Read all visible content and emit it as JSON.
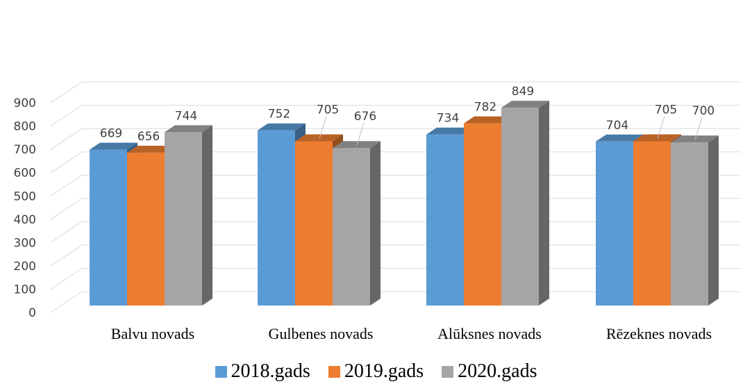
{
  "chart_data": {
    "type": "bar",
    "style": "3d-clustered-column",
    "categories": [
      "Balvu novads",
      "Gulbenes novads",
      "Alūksnes novads",
      "Rēzeknes novads"
    ],
    "series": [
      {
        "name": "2018.gads",
        "color": "#5B9BD5",
        "values": [
          669,
          752,
          734,
          704
        ]
      },
      {
        "name": "2019.gads",
        "color": "#ED7D31",
        "values": [
          656,
          705,
          782,
          705
        ]
      },
      {
        "name": "2020.gads",
        "color": "#A5A5A5",
        "values": [
          744,
          676,
          849,
          700
        ]
      }
    ],
    "ylim": [
      0,
      900
    ],
    "yticks": [
      "0",
      "100",
      "200",
      "300",
      "400",
      "500",
      "600",
      "700",
      "800",
      "900"
    ],
    "grid": true,
    "legend_position": "bottom",
    "title": "",
    "xlabel": "",
    "ylabel": ""
  }
}
